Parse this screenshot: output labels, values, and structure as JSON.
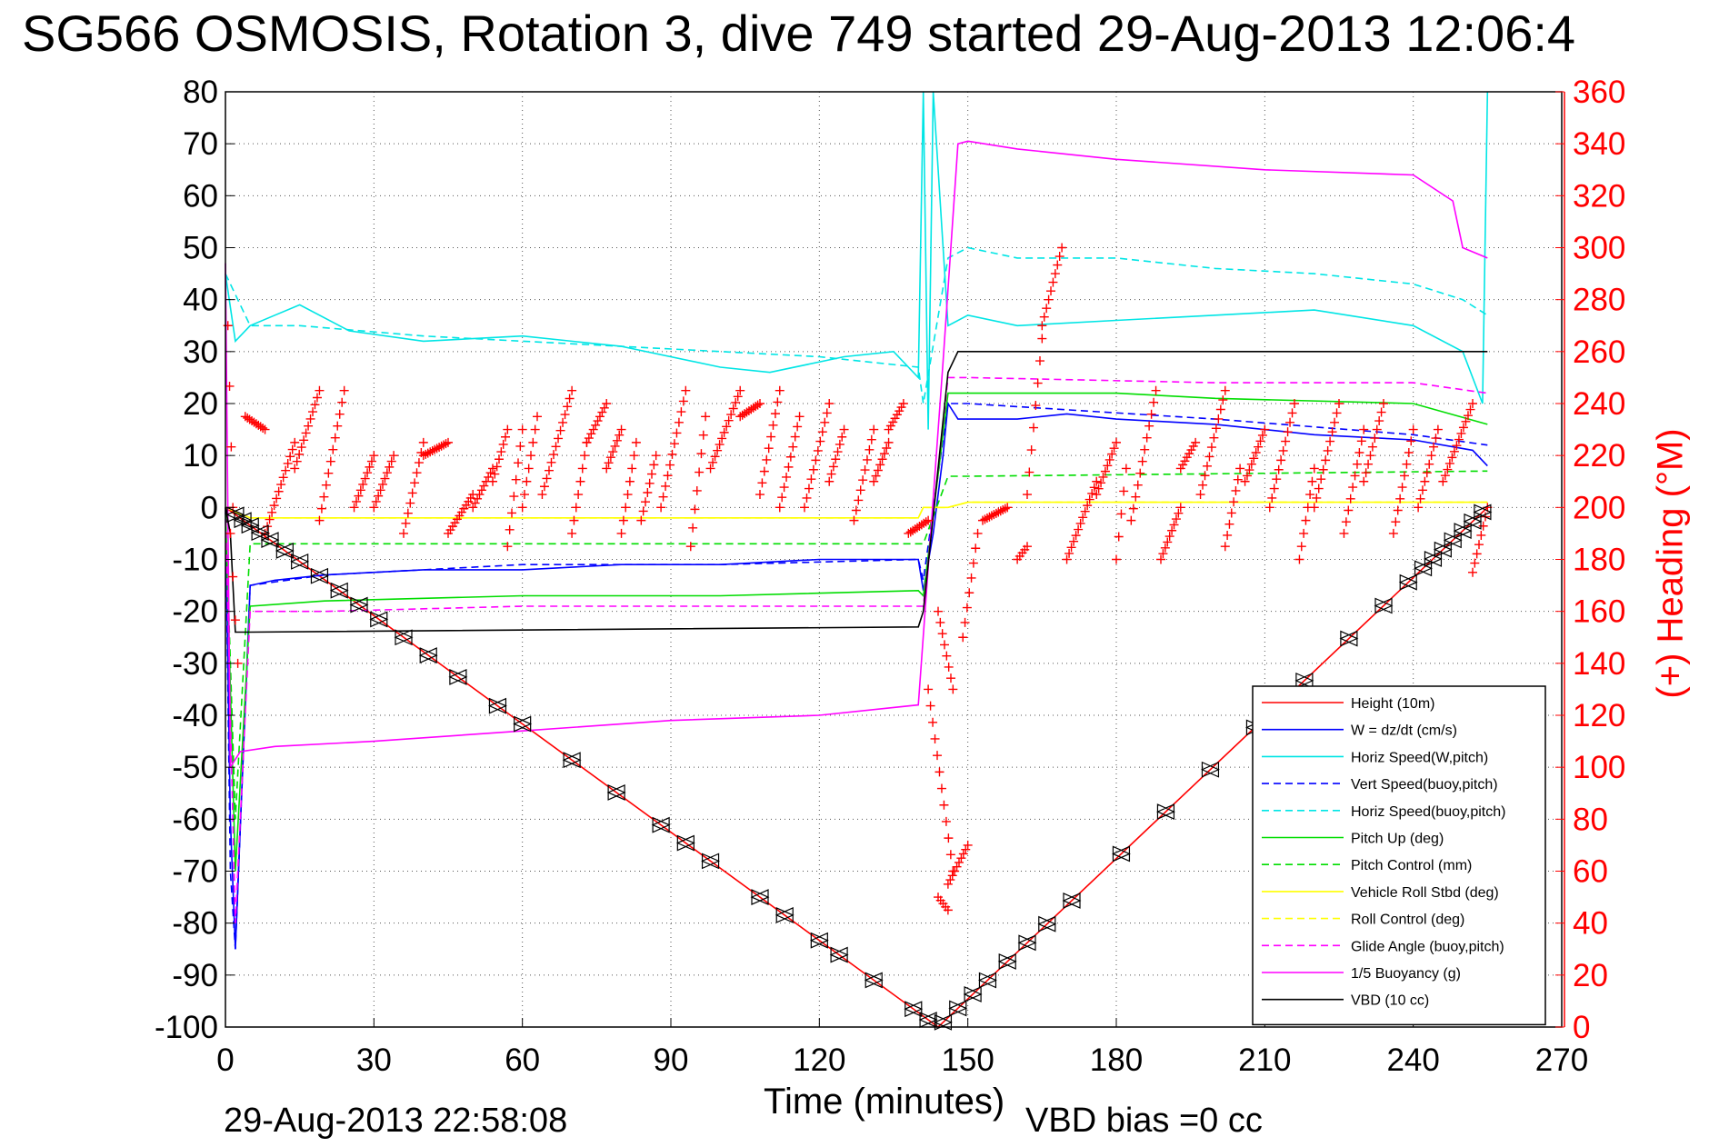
{
  "chart_data": {
    "type": "line",
    "title": "SG566 OSMOSIS, Rotation 3, dive 749 started 29-Aug-2013 12:06:4",
    "xlabel": "Time (minutes)",
    "ylabel": "",
    "y2label": "(+) Heading (°M)",
    "footer_left": "29-Aug-2013 22:58:08",
    "footer_right": "VBD bias =0 cc",
    "xlim": [
      0,
      270
    ],
    "ylim": [
      -100,
      80
    ],
    "y2lim": [
      0,
      360
    ],
    "grid": true,
    "legend_position": "bottom-right",
    "x_ticks": [
      "0",
      "30",
      "60",
      "90",
      "120",
      "150",
      "180",
      "210",
      "240",
      "270"
    ],
    "y_ticks": [
      "80",
      "70",
      "60",
      "50",
      "40",
      "30",
      "20",
      "10",
      "0",
      "-10",
      "-20",
      "-30",
      "-40",
      "-50",
      "-60",
      "-70",
      "-80",
      "-90",
      "-100"
    ],
    "y2_ticks": [
      "360",
      "340",
      "320",
      "300",
      "280",
      "260",
      "240",
      "220",
      "200",
      "180",
      "160",
      "140",
      "120",
      "100",
      "80",
      "60",
      "40",
      "20",
      "0"
    ],
    "colors": {
      "height": "#ff0000",
      "w": "#0000ff",
      "horiz_speed": "#00e5e5",
      "pitch": "#00dd00",
      "roll": "#ffff00",
      "glide": "#ff00ff",
      "buoyancy": "#ff00ff",
      "vbd": "#000000",
      "heading": "#ff0000",
      "markers": "#000000"
    },
    "series": [
      {
        "name": "Height (10m)",
        "style": "solid",
        "color": "#ff0000",
        "x": [
          0,
          144,
          255
        ],
        "y": [
          0,
          -100,
          0
        ]
      },
      {
        "name": "W = dz/dt (cm/s)",
        "style": "solid",
        "color": "#0000ff",
        "x": [
          0,
          1,
          2,
          5,
          10,
          20,
          40,
          60,
          80,
          100,
          120,
          140,
          141,
          143,
          145,
          146,
          148,
          150,
          160,
          170,
          180,
          200,
          220,
          240,
          252,
          255
        ],
        "y": [
          0,
          -60,
          -85,
          -15,
          -14,
          -13,
          -12,
          -12,
          -11,
          -11,
          -10,
          -10,
          -16,
          -5,
          10,
          20,
          17,
          17,
          17,
          18,
          17,
          16,
          14,
          13,
          11,
          8
        ]
      },
      {
        "name": "Horiz Speed(W,pitch)",
        "style": "solid",
        "color": "#00e5e5",
        "x": [
          0,
          2,
          5,
          10,
          15,
          25,
          40,
          60,
          80,
          100,
          110,
          125,
          135,
          140,
          141,
          142,
          143,
          146,
          150,
          160,
          180,
          200,
          220,
          240,
          250,
          254,
          255
        ],
        "y": [
          45,
          32,
          35,
          37,
          39,
          34,
          32,
          33,
          31,
          27,
          26,
          29,
          30,
          25,
          80,
          15,
          80,
          35,
          37,
          35,
          36,
          37,
          38,
          35,
          30,
          20,
          80
        ]
      },
      {
        "name": "Vert Speed(buoy,pitch)",
        "style": "dashed",
        "color": "#0000ff",
        "x": [
          0,
          1,
          2,
          5,
          20,
          60,
          100,
          140,
          141,
          146,
          150,
          200,
          240,
          255
        ],
        "y": [
          0,
          -70,
          -85,
          -15,
          -13,
          -11,
          -11,
          -10,
          -14,
          20,
          20,
          17,
          14,
          12
        ]
      },
      {
        "name": "Horiz Speed(buoy,pitch)",
        "style": "dashed",
        "color": "#00e5e5",
        "x": [
          0,
          5,
          15,
          40,
          80,
          120,
          140,
          141,
          146,
          150,
          160,
          180,
          200,
          220,
          240,
          250,
          255
        ],
        "y": [
          45,
          35,
          35,
          33,
          31,
          29,
          27,
          20,
          48,
          50,
          48,
          48,
          46,
          45,
          43,
          40,
          37
        ]
      },
      {
        "name": "Pitch Up (deg)",
        "style": "solid",
        "color": "#00dd00",
        "x": [
          0,
          2,
          5,
          20,
          60,
          100,
          140,
          141,
          146,
          150,
          180,
          200,
          240,
          255
        ],
        "y": [
          0,
          -70,
          -19,
          -18,
          -17,
          -17,
          -16,
          -17,
          22,
          22,
          22,
          21,
          20,
          16
        ]
      },
      {
        "name": "Pitch Control (mm)",
        "style": "dashed",
        "color": "#00dd00",
        "x": [
          0,
          2,
          5,
          140,
          141,
          146,
          150,
          255
        ],
        "y": [
          0,
          -60,
          -7,
          -7,
          -7,
          6,
          6,
          7
        ]
      },
      {
        "name": "Vehicle Roll Stbd (deg)",
        "style": "solid",
        "color": "#ffff00",
        "x": [
          0,
          5,
          140,
          141,
          146,
          150,
          255
        ],
        "y": [
          0,
          -2,
          -2,
          0,
          0,
          1,
          1
        ]
      },
      {
        "name": "Roll Control (deg)",
        "style": "dashed",
        "color": "#ffff00",
        "x": [
          0,
          5,
          140,
          141,
          146,
          150,
          255
        ],
        "y": [
          0,
          -2,
          -2,
          0,
          0,
          1,
          1
        ]
      },
      {
        "name": "Glide Angle (buoy,pitch)",
        "style": "dashed",
        "color": "#ff00ff",
        "x": [
          0,
          1,
          2,
          5,
          20,
          60,
          100,
          140,
          141,
          146,
          150,
          200,
          240,
          255
        ],
        "y": [
          0,
          -40,
          -80,
          -20,
          -20,
          -19,
          -19,
          -19,
          -19,
          25,
          25,
          24,
          24,
          22
        ]
      },
      {
        "name": "1/5 Buoyancy (g)",
        "style": "solid",
        "color": "#ff00ff",
        "x": [
          0,
          1,
          3,
          10,
          30,
          60,
          90,
          120,
          140,
          145,
          148,
          150,
          160,
          180,
          210,
          240,
          248,
          250,
          255
        ],
        "y": [
          47,
          -50,
          -47,
          -46,
          -45,
          -43,
          -41,
          -40,
          -38,
          28,
          70,
          70.5,
          69,
          67,
          65,
          64,
          59,
          50,
          48
        ]
      },
      {
        "name": "VBD (10 cc)",
        "style": "solid",
        "color": "#000000",
        "x": [
          0,
          1,
          2,
          5,
          140,
          141,
          146,
          148,
          255
        ],
        "y": [
          0,
          -5,
          -24,
          -24,
          -23,
          -20,
          26,
          30,
          30
        ]
      }
    ],
    "heading_segments": [
      {
        "x": [
          0.5,
          1.5
        ],
        "h": [
          270,
          200
        ]
      },
      {
        "x": [
          1,
          2.5
        ],
        "h": [
          190,
          140
        ]
      },
      {
        "x": [
          4,
          8
        ],
        "h": [
          235,
          230
        ]
      },
      {
        "x": [
          8,
          14
        ],
        "h": [
          190,
          225
        ]
      },
      {
        "x": [
          14,
          19
        ],
        "h": [
          215,
          245
        ]
      },
      {
        "x": [
          19,
          24
        ],
        "h": [
          195,
          245
        ]
      },
      {
        "x": [
          26,
          30
        ],
        "h": [
          200,
          220
        ]
      },
      {
        "x": [
          30,
          34
        ],
        "h": [
          200,
          220
        ]
      },
      {
        "x": [
          36,
          40
        ],
        "h": [
          190,
          225
        ]
      },
      {
        "x": [
          40,
          45
        ],
        "h": [
          220,
          225
        ]
      },
      {
        "x": [
          45,
          50
        ],
        "h": [
          190,
          205
        ]
      },
      {
        "x": [
          50,
          54
        ],
        "h": [
          200,
          215
        ]
      },
      {
        "x": [
          54,
          57
        ],
        "h": [
          210,
          230
        ]
      },
      {
        "x": [
          57,
          60
        ],
        "h": [
          185,
          230
        ]
      },
      {
        "x": [
          60,
          63
        ],
        "h": [
          200,
          235
        ]
      },
      {
        "x": [
          64,
          70
        ],
        "h": [
          205,
          245
        ]
      },
      {
        "x": [
          70,
          73
        ],
        "h": [
          190,
          225
        ]
      },
      {
        "x": [
          73,
          77
        ],
        "h": [
          225,
          240
        ]
      },
      {
        "x": [
          77,
          80
        ],
        "h": [
          215,
          230
        ]
      },
      {
        "x": [
          80,
          83
        ],
        "h": [
          190,
          225
        ]
      },
      {
        "x": [
          84,
          87
        ],
        "h": [
          195,
          220
        ]
      },
      {
        "x": [
          88,
          93
        ],
        "h": [
          200,
          245
        ]
      },
      {
        "x": [
          94,
          97
        ],
        "h": [
          185,
          235
        ]
      },
      {
        "x": [
          98,
          104
        ],
        "h": [
          215,
          245
        ]
      },
      {
        "x": [
          104,
          108
        ],
        "h": [
          235,
          240
        ]
      },
      {
        "x": [
          108,
          112
        ],
        "h": [
          205,
          245
        ]
      },
      {
        "x": [
          112,
          116
        ],
        "h": [
          200,
          235
        ]
      },
      {
        "x": [
          117,
          122
        ],
        "h": [
          200,
          240
        ]
      },
      {
        "x": [
          122,
          125
        ],
        "h": [
          210,
          230
        ]
      },
      {
        "x": [
          127,
          131
        ],
        "h": [
          195,
          230
        ]
      },
      {
        "x": [
          131,
          134
        ],
        "h": [
          210,
          225
        ]
      },
      {
        "x": [
          134,
          137
        ],
        "h": [
          230,
          240
        ]
      },
      {
        "x": [
          138,
          142
        ],
        "h": [
          190,
          195
        ]
      },
      {
        "x": [
          142,
          147
        ],
        "h": [
          130,
          60
        ]
      },
      {
        "x": [
          144,
          146
        ],
        "h": [
          50,
          45
        ]
      },
      {
        "x": [
          146,
          150
        ],
        "h": [
          55,
          70
        ]
      },
      {
        "x": [
          144,
          147
        ],
        "h": [
          160,
          130
        ]
      },
      {
        "x": [
          149,
          152
        ],
        "h": [
          150,
          190
        ]
      },
      {
        "x": [
          153,
          158
        ],
        "h": [
          195,
          200
        ]
      },
      {
        "x": [
          160,
          162
        ],
        "h": [
          180,
          185
        ]
      },
      {
        "x": [
          162,
          165
        ],
        "h": [
          205,
          265
        ]
      },
      {
        "x": [
          165,
          169
        ],
        "h": [
          270,
          300
        ]
      },
      {
        "x": [
          170,
          176
        ],
        "h": [
          180,
          210
        ]
      },
      {
        "x": [
          176,
          180
        ],
        "h": [
          205,
          225
        ]
      },
      {
        "x": [
          180,
          182
        ],
        "h": [
          180,
          215
        ]
      },
      {
        "x": [
          183,
          188
        ],
        "h": [
          195,
          245
        ]
      },
      {
        "x": [
          189,
          193
        ],
        "h": [
          180,
          200
        ]
      },
      {
        "x": [
          193,
          196
        ],
        "h": [
          215,
          225
        ]
      },
      {
        "x": [
          197,
          202
        ],
        "h": [
          205,
          245
        ]
      },
      {
        "x": [
          202,
          205
        ],
        "h": [
          185,
          215
        ]
      },
      {
        "x": [
          206,
          210
        ],
        "h": [
          210,
          230
        ]
      },
      {
        "x": [
          211,
          216
        ],
        "h": [
          200,
          240
        ]
      },
      {
        "x": [
          217,
          220
        ],
        "h": [
          180,
          215
        ]
      },
      {
        "x": [
          220,
          225
        ],
        "h": [
          200,
          240
        ]
      },
      {
        "x": [
          226,
          230
        ],
        "h": [
          190,
          230
        ]
      },
      {
        "x": [
          230,
          234
        ],
        "h": [
          210,
          240
        ]
      },
      {
        "x": [
          236,
          240
        ],
        "h": [
          190,
          230
        ]
      },
      {
        "x": [
          241,
          245
        ],
        "h": [
          200,
          230
        ]
      },
      {
        "x": [
          246,
          252
        ],
        "h": [
          210,
          240
        ]
      },
      {
        "x": [
          252,
          255
        ],
        "h": [
          175,
          200
        ]
      }
    ],
    "depth_markers_x": [
      2,
      3.5,
      5,
      7,
      9,
      12,
      15,
      19,
      23,
      27,
      31,
      36,
      41,
      47,
      55,
      60,
      70,
      79,
      88,
      93,
      98,
      108,
      113,
      120,
      124,
      131,
      139,
      142,
      145,
      148,
      151,
      154,
      158,
      162,
      166,
      171,
      181,
      190,
      199,
      208,
      218,
      227,
      234,
      239,
      242,
      244,
      246,
      248,
      250,
      252,
      254
    ]
  },
  "legend": [
    {
      "label": "Height (10m)",
      "color": "#ff0000",
      "style": "solid"
    },
    {
      "label": "W = dz/dt (cm/s)",
      "color": "#0000ff",
      "style": "solid"
    },
    {
      "label": "Horiz Speed(W,pitch)",
      "color": "#00e5e5",
      "style": "solid"
    },
    {
      "label": "Vert Speed(buoy,pitch)",
      "color": "#0000ff",
      "style": "dashed"
    },
    {
      "label": "Horiz Speed(buoy,pitch)",
      "color": "#00e5e5",
      "style": "dashed"
    },
    {
      "label": "Pitch Up (deg)",
      "color": "#00dd00",
      "style": "solid"
    },
    {
      "label": "Pitch Control (mm)",
      "color": "#00dd00",
      "style": "dashed"
    },
    {
      "label": "Vehicle Roll Stbd (deg)",
      "color": "#ffff00",
      "style": "solid"
    },
    {
      "label": "Roll Control (deg)",
      "color": "#ffff00",
      "style": "dashed"
    },
    {
      "label": "Glide Angle (buoy,pitch)",
      "color": "#ff00ff",
      "style": "dashed"
    },
    {
      "label": "1/5 Buoyancy (g)",
      "color": "#ff00ff",
      "style": "solid"
    },
    {
      "label": "VBD (10 cc)",
      "color": "#000000",
      "style": "solid"
    }
  ]
}
